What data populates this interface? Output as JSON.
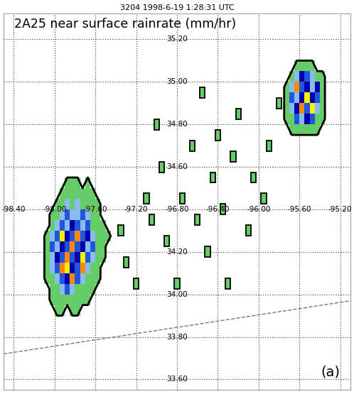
{
  "chart_data": {
    "type": "map",
    "title": "3204 1998-6-19 1:28:31 UTC",
    "subtitle": "2A25 near surface rainrate (mm/hr)",
    "panel_label": "(a)",
    "xlim": [
      -98.5,
      -95.1
    ],
    "ylim": [
      33.55,
      35.32
    ],
    "xticks": [
      -98.4,
      -98.0,
      -97.6,
      -97.2,
      -96.8,
      -96.4,
      -96.0,
      -95.6,
      -95.2
    ],
    "yticks": [
      33.6,
      33.8,
      34.0,
      34.2,
      34.4,
      34.6,
      34.8,
      35.0,
      35.2
    ],
    "tick_labels": false,
    "grid": true,
    "label_lat": 34.4,
    "label_lon": -96.8,
    "lon_labels": [
      {
        "value": -98.4,
        "label": "-98.40"
      },
      {
        "value": -98.0,
        "label": "-98.00"
      },
      {
        "value": -97.6,
        "label": "-97.60"
      },
      {
        "value": -97.2,
        "label": "-97.20"
      },
      {
        "value": -96.8,
        "label": "-96.80"
      },
      {
        "value": -96.4,
        "label": "-96.40"
      },
      {
        "value": -96.0,
        "label": "-96.00"
      },
      {
        "value": -95.6,
        "label": "-95.60"
      },
      {
        "value": -95.2,
        "label": "-95.20"
      }
    ],
    "lat_labels": [
      {
        "value": 35.2,
        "label": "35.20"
      },
      {
        "value": 35.0,
        "label": "35.00"
      },
      {
        "value": 34.8,
        "label": "34.80"
      },
      {
        "value": 34.6,
        "label": "34.60"
      },
      {
        "value": 34.2,
        "label": "34.20"
      },
      {
        "value": 34.0,
        "label": "34.00"
      },
      {
        "value": 33.8,
        "label": "33.80"
      },
      {
        "value": 33.6,
        "label": "33.60"
      }
    ],
    "levels": [
      0.5,
      2,
      5,
      10,
      15,
      25,
      35,
      60
    ],
    "colors": [
      "#66cc66",
      "#88bbee",
      "#2255dd",
      "#0000aa",
      "#ee2222",
      "#ff8800",
      "#ffee00"
    ],
    "rain": {
      "cell_size": 0.05,
      "storms": [
        {
          "lon0": -98.1,
          "lat0": 33.9,
          "cells": [
            [
              0,
              0,
              1,
              1,
              0,
              1,
              1,
              0,
              0,
              0,
              0,
              0,
              0,
              0
            ],
            [
              0,
              1,
              1,
              1,
              1,
              1,
              1,
              1,
              1,
              0,
              0,
              0,
              0,
              0
            ],
            [
              0,
              1,
              1,
              3,
              6,
              3,
              1,
              1,
              1,
              1,
              0,
              0,
              0,
              0
            ],
            [
              1,
              1,
              3,
              6,
              12,
              25,
              6,
              3,
              1,
              1,
              1,
              0,
              0,
              0
            ],
            [
              1,
              3,
              6,
              25,
              50,
              12,
              6,
              25,
              3,
              1,
              1,
              0,
              0,
              0
            ],
            [
              1,
              3,
              12,
              6,
              25,
              6,
              12,
              50,
              6,
              3,
              1,
              1,
              0,
              0
            ],
            [
              1,
              6,
              3,
              12,
              6,
              25,
              6,
              12,
              3,
              6,
              1,
              1,
              0,
              0
            ],
            [
              1,
              3,
              6,
              50,
              12,
              6,
              25,
              6,
              12,
              3,
              1,
              1,
              1,
              0
            ],
            [
              0,
              1,
              3,
              6,
              3,
              12,
              6,
              3,
              6,
              1,
              1,
              1,
              0,
              0
            ],
            [
              0,
              1,
              1,
              3,
              6,
              3,
              3,
              6,
              3,
              1,
              1,
              0,
              0,
              0
            ],
            [
              0,
              0,
              1,
              1,
              3,
              1,
              3,
              1,
              1,
              1,
              1,
              0,
              0,
              0
            ],
            [
              0,
              0,
              0,
              1,
              1,
              1,
              1,
              1,
              1,
              1,
              0,
              0,
              0,
              0
            ],
            [
              0,
              0,
              0,
              0,
              1,
              1,
              1,
              0,
              1,
              0,
              0,
              0,
              0,
              0
            ]
          ]
        },
        {
          "lon0": -95.75,
          "lat0": 34.75,
          "cells": [
            [
              0,
              1,
              1,
              1,
              1,
              1,
              1,
              0,
              0
            ],
            [
              1,
              1,
              6,
              3,
              12,
              6,
              1,
              1,
              0
            ],
            [
              1,
              3,
              12,
              25,
              6,
              50,
              3,
              1,
              0
            ],
            [
              1,
              6,
              3,
              12,
              50,
              12,
              6,
              1,
              0
            ],
            [
              1,
              3,
              25,
              6,
              12,
              3,
              12,
              1,
              0
            ],
            [
              0,
              1,
              3,
              12,
              6,
              3,
              1,
              1,
              0
            ],
            [
              0,
              0,
              1,
              1,
              1,
              1,
              0,
              0,
              0
            ]
          ]
        }
      ],
      "scattered": [
        [
          -97.35,
          34.3,
          1
        ],
        [
          -97.3,
          34.15,
          1
        ],
        [
          -97.2,
          34.05,
          1
        ],
        [
          -97.1,
          34.45,
          1
        ],
        [
          -97.05,
          34.35,
          1
        ],
        [
          -96.95,
          34.6,
          1
        ],
        [
          -96.9,
          34.25,
          1
        ],
        [
          -96.8,
          34.05,
          1
        ],
        [
          -96.75,
          34.45,
          1
        ],
        [
          -96.65,
          34.7,
          1
        ],
        [
          -96.6,
          34.35,
          1
        ],
        [
          -96.5,
          34.2,
          1
        ],
        [
          -96.45,
          34.55,
          1
        ],
        [
          -96.4,
          34.75,
          1
        ],
        [
          -96.35,
          34.4,
          1
        ],
        [
          -96.3,
          34.05,
          1
        ],
        [
          -96.25,
          34.65,
          1
        ],
        [
          -96.2,
          34.85,
          1
        ],
        [
          -96.1,
          34.3,
          1
        ],
        [
          -96.05,
          34.55,
          1
        ],
        [
          -95.95,
          34.45,
          1
        ],
        [
          -95.9,
          34.7,
          1
        ],
        [
          -95.8,
          34.9,
          1
        ],
        [
          -96.55,
          34.95,
          1
        ],
        [
          -97.0,
          34.8,
          1
        ]
      ]
    },
    "swath_edge": {
      "lon": [
        -98.5,
        -95.1
      ],
      "lat": [
        33.72,
        33.97
      ]
    }
  }
}
